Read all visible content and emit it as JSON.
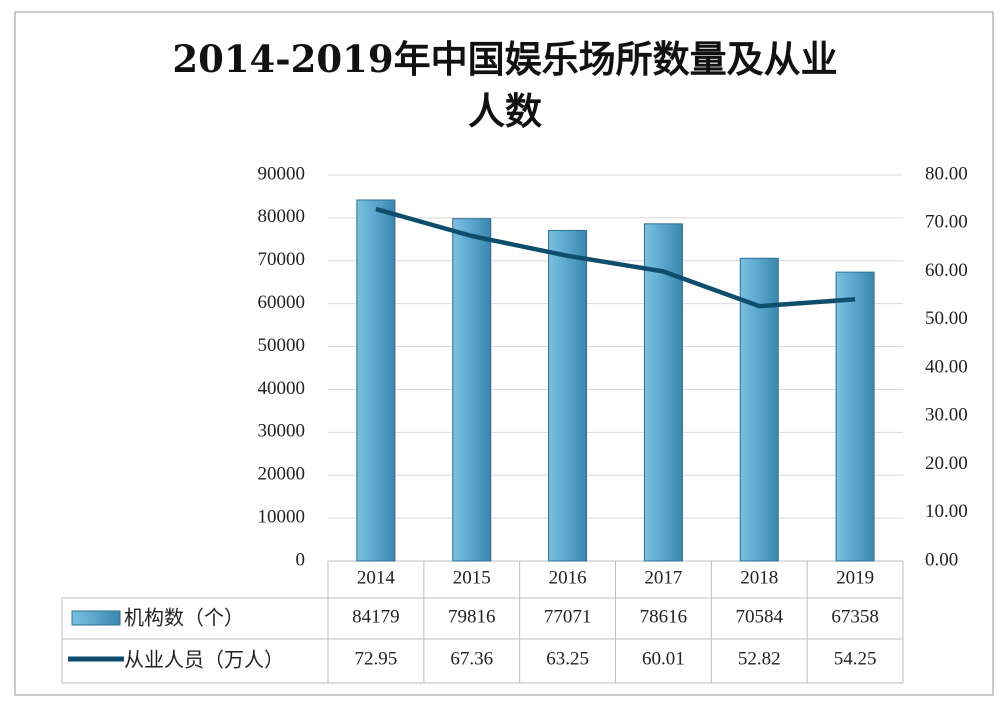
{
  "chart_data": {
    "type": "bar_line",
    "title": "2014-2019年中国娱乐场所数量及从业人数",
    "categories": [
      "2014",
      "2015",
      "2016",
      "2017",
      "2018",
      "2019"
    ],
    "series": [
      {
        "name": "机构数（个）",
        "type": "bar",
        "color": "#5aa5cc",
        "values": [
          84179,
          79816,
          77071,
          78616,
          70584,
          67358
        ]
      },
      {
        "name": "从业人员（万人）",
        "type": "line",
        "axis": "y2",
        "color": "#0e4e6c",
        "values": [
          72.95,
          67.36,
          63.25,
          60.01,
          52.82,
          54.25
        ]
      }
    ],
    "ylim": [
      0,
      90000
    ],
    "yticks": [
      0,
      10000,
      20000,
      30000,
      40000,
      50000,
      60000,
      70000,
      80000,
      90000
    ],
    "y2lim": [
      0,
      80
    ],
    "y2ticks": [
      {
        "value": 0,
        "label": "0.00"
      },
      {
        "value": 10,
        "label": "10.00"
      },
      {
        "value": 20,
        "label": "20.00"
      },
      {
        "value": 30,
        "label": "30.00"
      },
      {
        "value": 40,
        "label": "40.00"
      },
      {
        "value": 50,
        "label": "50.00"
      },
      {
        "value": 60,
        "label": "60.00"
      },
      {
        "value": 70,
        "label": "70.00"
      },
      {
        "value": 80,
        "label": "80.00"
      }
    ],
    "grid": true
  }
}
